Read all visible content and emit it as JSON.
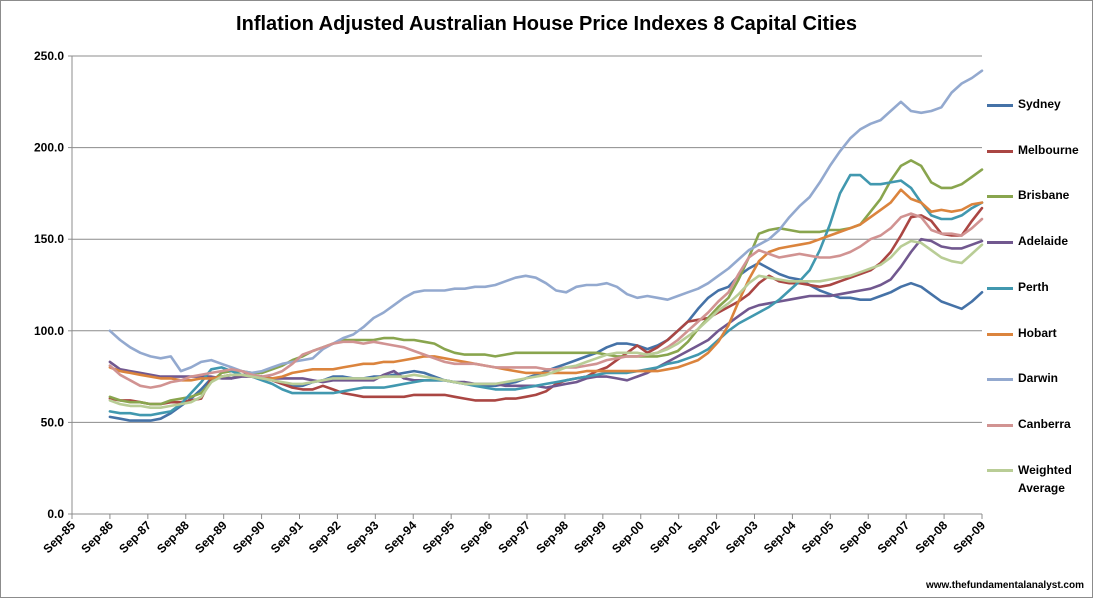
{
  "page": {
    "source_note": "www.thefundamentalanalyst.com"
  },
  "chart_data": {
    "type": "line",
    "title": "Inflation Adjusted Australian House Price Indexes 8 Capital Cities",
    "xlabel": "",
    "ylabel": "",
    "ylim": [
      0,
      250
    ],
    "y_ticks": [
      "0.0",
      "50.0",
      "100.0",
      "150.0",
      "200.0",
      "250.0"
    ],
    "x_ticks": [
      "Sep-85",
      "Sep-86",
      "Sep-87",
      "Sep-88",
      "Sep-89",
      "Sep-90",
      "Sep-91",
      "Sep-92",
      "Sep-93",
      "Sep-94",
      "Sep-95",
      "Sep-96",
      "Sep-97",
      "Sep-98",
      "Sep-99",
      "Sep-00",
      "Sep-01",
      "Sep-02",
      "Sep-03",
      "Sep-04",
      "Sep-05",
      "Sep-06",
      "Sep-07",
      "Sep-08",
      "Sep-09"
    ],
    "x_start": "Sep-86",
    "x_end": "Sep-09",
    "grid": "horizontal",
    "legend_position": "right",
    "series": [
      {
        "name": "Sydney",
        "color": "#4572A7",
        "values": [
          53,
          52,
          51,
          51,
          51,
          52,
          55,
          59,
          63,
          68,
          74,
          75,
          74,
          76,
          76,
          75,
          73,
          71,
          70,
          70,
          72,
          73,
          75,
          75,
          74,
          74,
          75,
          75,
          76,
          77,
          78,
          77,
          75,
          73,
          72,
          71,
          71,
          70,
          70,
          71,
          72,
          74,
          76,
          78,
          80,
          82,
          84,
          86,
          88,
          91,
          93,
          93,
          92,
          90,
          92,
          95,
          100,
          105,
          112,
          118,
          122,
          124,
          130,
          134,
          137,
          134,
          131,
          129,
          128,
          125,
          122,
          120,
          118,
          118,
          117,
          117,
          119,
          121,
          124,
          126,
          124,
          120,
          116,
          114,
          112,
          116,
          121
        ]
      },
      {
        "name": "Melbourne",
        "color": "#AA4643",
        "values": [
          63,
          62,
          62,
          61,
          60,
          60,
          61,
          61,
          62,
          63,
          74,
          75,
          76,
          76,
          75,
          74,
          73,
          71,
          69,
          68,
          68,
          70,
          68,
          66,
          65,
          64,
          64,
          64,
          64,
          64,
          65,
          65,
          65,
          65,
          64,
          63,
          62,
          62,
          62,
          63,
          63,
          64,
          65,
          67,
          71,
          73,
          74,
          75,
          78,
          80,
          84,
          88,
          92,
          88,
          91,
          95,
          100,
          105,
          106,
          107,
          110,
          113,
          116,
          120,
          126,
          130,
          127,
          126,
          126,
          125,
          124,
          125,
          127,
          129,
          131,
          133,
          137,
          143,
          152,
          162,
          163,
          160,
          153,
          152,
          152,
          160,
          167
        ]
      },
      {
        "name": "Brisbane",
        "color": "#89A54E",
        "values": [
          64,
          62,
          61,
          61,
          60,
          60,
          62,
          63,
          64,
          66,
          72,
          77,
          78,
          78,
          77,
          77,
          79,
          81,
          84,
          86,
          89,
          91,
          93,
          95,
          95,
          95,
          95,
          96,
          96,
          95,
          95,
          94,
          93,
          90,
          88,
          87,
          87,
          87,
          86,
          87,
          88,
          88,
          88,
          88,
          88,
          88,
          88,
          88,
          88,
          87,
          86,
          86,
          86,
          86,
          86,
          87,
          89,
          94,
          101,
          107,
          113,
          118,
          128,
          140,
          153,
          155,
          156,
          155,
          154,
          154,
          154,
          155,
          155,
          156,
          158,
          165,
          172,
          182,
          190,
          193,
          190,
          181,
          178,
          178,
          180,
          184,
          188
        ]
      },
      {
        "name": "Adelaide",
        "color": "#71588F",
        "values": [
          83,
          79,
          78,
          77,
          76,
          75,
          75,
          75,
          75,
          75,
          75,
          74,
          74,
          75,
          75,
          75,
          74,
          74,
          74,
          74,
          73,
          72,
          73,
          73,
          73,
          73,
          73,
          76,
          78,
          74,
          73,
          73,
          73,
          73,
          72,
          72,
          71,
          71,
          71,
          70,
          70,
          70,
          70,
          69,
          70,
          71,
          72,
          74,
          75,
          75,
          74,
          73,
          75,
          77,
          80,
          83,
          86,
          89,
          92,
          95,
          100,
          104,
          108,
          112,
          114,
          115,
          116,
          117,
          118,
          119,
          119,
          119,
          120,
          121,
          122,
          123,
          125,
          128,
          135,
          143,
          150,
          149,
          146,
          145,
          145,
          147,
          149
        ]
      },
      {
        "name": "Perth",
        "color": "#4198AF",
        "values": [
          56,
          55,
          55,
          54,
          54,
          55,
          56,
          60,
          66,
          72,
          79,
          80,
          78,
          76,
          75,
          73,
          71,
          68,
          66,
          66,
          66,
          66,
          66,
          67,
          68,
          69,
          69,
          69,
          70,
          71,
          72,
          73,
          73,
          73,
          72,
          71,
          70,
          69,
          68,
          68,
          68,
          69,
          70,
          71,
          72,
          73,
          74,
          75,
          76,
          77,
          77,
          77,
          78,
          79,
          80,
          82,
          83,
          85,
          87,
          90,
          95,
          100,
          104,
          107,
          110,
          113,
          117,
          122,
          127,
          133,
          144,
          158,
          175,
          185,
          185,
          180,
          180,
          181,
          182,
          178,
          170,
          163,
          161,
          161,
          163,
          167,
          170
        ]
      },
      {
        "name": "Hobart",
        "color": "#DB843D",
        "values": [
          80,
          78,
          77,
          76,
          75,
          74,
          74,
          73,
          73,
          74,
          74,
          75,
          76,
          76,
          75,
          74,
          74,
          75,
          77,
          78,
          79,
          79,
          79,
          80,
          81,
          82,
          82,
          83,
          83,
          84,
          85,
          86,
          86,
          85,
          84,
          83,
          82,
          81,
          80,
          79,
          78,
          77,
          77,
          77,
          77,
          77,
          77,
          78,
          78,
          78,
          78,
          78,
          78,
          78,
          78,
          79,
          80,
          82,
          84,
          88,
          94,
          103,
          116,
          128,
          138,
          143,
          145,
          146,
          147,
          148,
          150,
          152,
          154,
          156,
          158,
          162,
          166,
          170,
          177,
          172,
          170,
          165,
          166,
          165,
          166,
          169,
          170
        ]
      },
      {
        "name": "Darwin",
        "color": "#93A9CF",
        "values": [
          100,
          95,
          91,
          88,
          86,
          85,
          86,
          78,
          80,
          83,
          84,
          82,
          80,
          78,
          77,
          78,
          80,
          82,
          83,
          84,
          85,
          90,
          93,
          96,
          98,
          102,
          107,
          110,
          114,
          118,
          121,
          122,
          122,
          122,
          123,
          123,
          124,
          124,
          125,
          127,
          129,
          130,
          129,
          126,
          122,
          121,
          124,
          125,
          125,
          126,
          124,
          120,
          118,
          119,
          118,
          117,
          119,
          121,
          123,
          126,
          130,
          134,
          139,
          144,
          147,
          150,
          155,
          162,
          168,
          173,
          181,
          190,
          198,
          205,
          210,
          213,
          215,
          220,
          225,
          220,
          219,
          220,
          222,
          230,
          235,
          238,
          242
        ]
      },
      {
        "name": "Canberra",
        "color": "#D19392",
        "values": [
          81,
          76,
          73,
          70,
          69,
          70,
          72,
          73,
          75,
          76,
          77,
          78,
          79,
          78,
          76,
          75,
          76,
          78,
          82,
          87,
          89,
          91,
          93,
          94,
          94,
          93,
          94,
          93,
          92,
          91,
          89,
          87,
          85,
          83,
          82,
          82,
          82,
          81,
          80,
          80,
          80,
          80,
          80,
          79,
          79,
          80,
          80,
          81,
          82,
          84,
          85,
          86,
          86,
          87,
          88,
          91,
          95,
          100,
          105,
          110,
          116,
          121,
          131,
          140,
          144,
          142,
          140,
          141,
          142,
          141,
          140,
          140,
          141,
          143,
          146,
          150,
          152,
          156,
          162,
          164,
          162,
          155,
          153,
          153,
          152,
          156,
          161
        ]
      },
      {
        "name": "Weighted Average",
        "color": "#B9CD96",
        "values": [
          62,
          60,
          59,
          59,
          58,
          58,
          59,
          60,
          61,
          64,
          72,
          75,
          76,
          76,
          75,
          74,
          73,
          72,
          71,
          71,
          72,
          73,
          74,
          74,
          74,
          74,
          74,
          75,
          75,
          75,
          76,
          75,
          74,
          73,
          72,
          71,
          71,
          71,
          71,
          72,
          73,
          74,
          75,
          76,
          78,
          80,
          81,
          83,
          85,
          87,
          88,
          88,
          88,
          87,
          88,
          90,
          93,
          97,
          101,
          106,
          111,
          115,
          120,
          126,
          130,
          129,
          128,
          127,
          127,
          127,
          127,
          128,
          129,
          130,
          132,
          134,
          136,
          140,
          146,
          149,
          148,
          144,
          140,
          138,
          137,
          142,
          147
        ]
      }
    ]
  }
}
